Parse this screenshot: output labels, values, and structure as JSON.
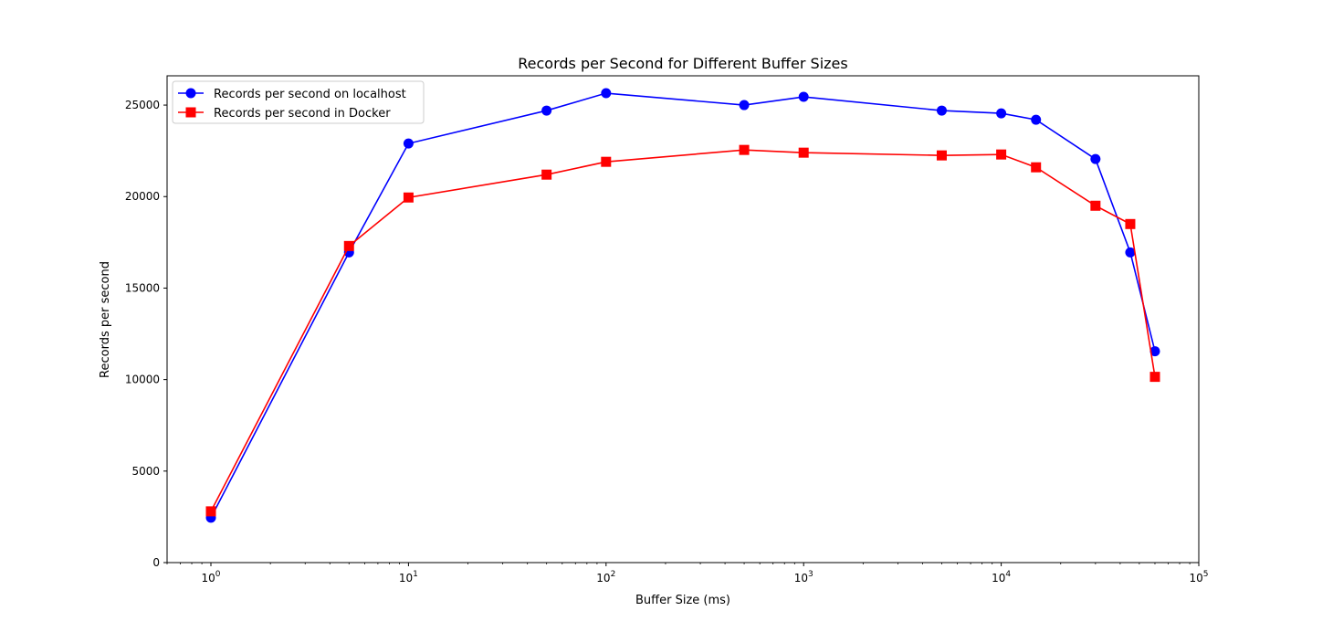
{
  "chart_data": {
    "type": "line",
    "title": "Records per Second for Different Buffer Sizes",
    "xlabel": "Buffer Size (ms)",
    "ylabel": "Records per second",
    "xscale": "log",
    "xlim": [
      0.6,
      100000
    ],
    "ylim": [
      0,
      26600
    ],
    "grid": false,
    "legend_loc": "upper left",
    "x": [
      1,
      5,
      10,
      50,
      100,
      500,
      1000,
      5000,
      10000,
      15000,
      30000,
      45000,
      60000
    ],
    "series": [
      {
        "name": "Records per second on localhost",
        "color": "#0000ff",
        "marker": "circle",
        "values": [
          2450,
          16950,
          22900,
          24700,
          25650,
          25000,
          25450,
          24700,
          24550,
          24200,
          22050,
          16950,
          11550
        ]
      },
      {
        "name": "Records per second in Docker",
        "color": "#ff0000",
        "marker": "square",
        "values": [
          2800,
          17300,
          19950,
          21200,
          21900,
          22550,
          22400,
          22250,
          22300,
          21600,
          19500,
          18500,
          10150
        ]
      }
    ],
    "x_ticks": [
      {
        "value": 1,
        "base": "10",
        "exp": "0"
      },
      {
        "value": 10,
        "base": "10",
        "exp": "1"
      },
      {
        "value": 100,
        "base": "10",
        "exp": "2"
      },
      {
        "value": 1000,
        "base": "10",
        "exp": "3"
      },
      {
        "value": 10000,
        "base": "10",
        "exp": "4"
      },
      {
        "value": 100000,
        "base": "10",
        "exp": "5"
      }
    ],
    "y_ticks": [
      {
        "value": 0,
        "label": "0"
      },
      {
        "value": 5000,
        "label": "5000"
      },
      {
        "value": 10000,
        "label": "10000"
      },
      {
        "value": 15000,
        "label": "15000"
      },
      {
        "value": 20000,
        "label": "20000"
      },
      {
        "value": 25000,
        "label": "25000"
      }
    ]
  }
}
